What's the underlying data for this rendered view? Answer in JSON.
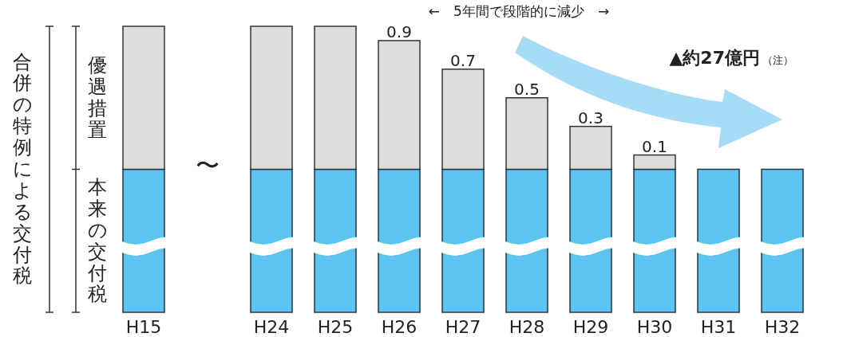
{
  "chart_data": {
    "type": "bar",
    "stacked": true,
    "ylabel": "合併の特例による交付税",
    "categories": [
      "H15",
      null,
      "H24",
      "H25",
      "H26",
      "H27",
      "H28",
      "H29",
      "H30",
      "H31",
      "H32"
    ],
    "series": [
      {
        "name": "本来の交付税",
        "color": "#5bc4f1",
        "values": [
          1,
          null,
          1,
          1,
          1,
          1,
          1,
          1,
          1,
          1,
          1
        ]
      },
      {
        "name": "優遇措置",
        "color": "#dcdcdc",
        "values": [
          1,
          null,
          1,
          1,
          0.9,
          0.7,
          0.5,
          0.3,
          0.1,
          null,
          null
        ],
        "value_labels": [
          null,
          null,
          null,
          null,
          "0.9",
          "0.7",
          "0.5",
          "0.3",
          "0.1",
          null,
          null
        ]
      }
    ],
    "annotations": [
      "〜",
      "←　5年間で段階的に減少　→",
      "▲約27億円",
      "（注）"
    ]
  }
}
